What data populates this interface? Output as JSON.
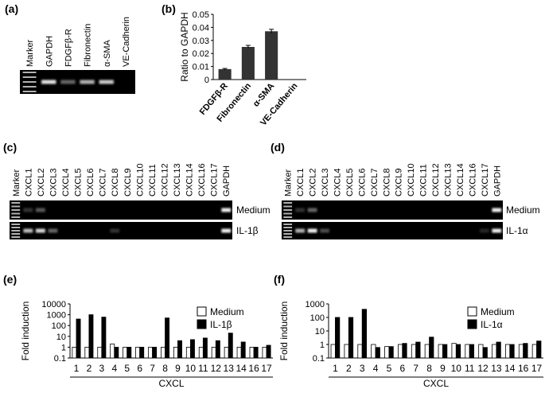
{
  "panel_labels": [
    "(a)",
    "(b)",
    "(c)",
    "(d)",
    "(e)",
    "(f)"
  ],
  "gels": [
    {
      "lanes": [
        "Marker",
        "GAPDH",
        "FDGFβ-R",
        "Fibronectin",
        "α-SMA",
        "VE-Cadherin"
      ]
    },
    {
      "lanes": [
        "Marker",
        "CXCL1",
        "CXCL2",
        "CXCL3",
        "CXCL4",
        "CXCL5",
        "CXCL6",
        "CXCL7",
        "CXCL8",
        "CXCL9",
        "CXCL10",
        "CXCL11",
        "CXCL12",
        "CXCL13",
        "CXCL14",
        "CXCL16",
        "CXCL17",
        "GAPDH"
      ],
      "rows": [
        "Medium",
        "IL-1β"
      ]
    },
    {
      "lanes": [
        "Marker",
        "CXCL1",
        "CXCL2",
        "CXCL3",
        "CXCL4",
        "CXCL5",
        "CXCL6",
        "CXCL7",
        "CXCL8",
        "CXCL9",
        "CXCL10",
        "CXCL11",
        "CXCL12",
        "CXCL13",
        "CXCL14",
        "CXCL16",
        "CXCL17",
        "GAPDH"
      ],
      "rows": [
        "Medium",
        "IL-1α"
      ]
    }
  ],
  "chart_data": [
    {
      "type": "bar",
      "ylabel": "Ratio to GAPDH",
      "categories": [
        "FDGFβ-R",
        "Fibronectin",
        "α-SMA",
        "VE-Cadherin"
      ],
      "values": [
        0.008,
        0.025,
        0.037,
        0
      ],
      "errors": [
        0.0005,
        0.0012,
        0.0015,
        0
      ],
      "color": "#333333",
      "ylim": [
        0,
        0.05
      ],
      "yticks": [
        0,
        0.01,
        0.02,
        0.03,
        0.04,
        0.05
      ]
    },
    {
      "type": "grouped_bar",
      "log_scale": true,
      "xlabel": "CXCL",
      "ylabel": "Fold induction",
      "legend": "upper right",
      "categories": [
        "1",
        "2",
        "3",
        "4",
        "5",
        "6",
        "7",
        "8",
        "9",
        "10",
        "11",
        "12",
        "13",
        "14",
        "16",
        "17"
      ],
      "series": [
        {
          "name": "Medium",
          "color": "#ffffff",
          "values": [
            1,
            1,
            1,
            2,
            1,
            1,
            1,
            1,
            1,
            1,
            1,
            1,
            1,
            1,
            1,
            1
          ]
        },
        {
          "name": "IL-1β",
          "color": "#000000",
          "values": [
            400,
            1000,
            600,
            1,
            1,
            1,
            1,
            500,
            4,
            5,
            7,
            4,
            20,
            3,
            1,
            1.5
          ]
        }
      ],
      "ylim": [
        0.1,
        10000
      ],
      "yticks": [
        0.1,
        1,
        10,
        100,
        1000,
        10000
      ]
    },
    {
      "type": "grouped_bar",
      "log_scale": true,
      "xlabel": "CXCL",
      "ylabel": "Fold induction",
      "legend": "upper right",
      "categories": [
        "1",
        "2",
        "3",
        "4",
        "5",
        "6",
        "7",
        "8",
        "9",
        "10",
        "11",
        "12",
        "13",
        "14",
        "16",
        "17"
      ],
      "series": [
        {
          "name": "Medium",
          "color": "#ffffff",
          "values": [
            1,
            1,
            1,
            1,
            0.7,
            1,
            1,
            1,
            1,
            1.2,
            1,
            1,
            1,
            1,
            1,
            1
          ]
        },
        {
          "name": "IL-1α",
          "color": "#000000",
          "values": [
            100,
            100,
            400,
            0.6,
            0.7,
            1.2,
            1.5,
            3.5,
            1,
            1,
            1,
            0.6,
            1.5,
            1,
            1.2,
            1.8
          ]
        }
      ],
      "ylim": [
        0.1,
        1000
      ],
      "yticks": [
        0.1,
        1,
        10,
        100,
        1000
      ]
    }
  ]
}
